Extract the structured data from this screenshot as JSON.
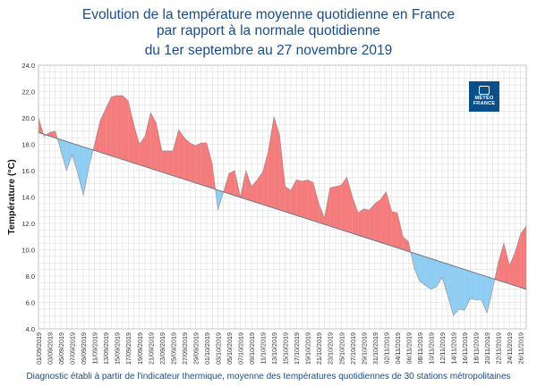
{
  "title_line1": "Evolution de la température moyenne quotidienne en France",
  "title_line2": "par rapport à la normale quotidienne",
  "title_line3": "du 1er septembre au 27 novembre 2019",
  "footer": "Diagnostic établi à partir de l'indicateur thermique, moyenne des températures quotidiennes de 30 stations métropolitaines",
  "logo": {
    "line1": "MÉTÉO",
    "line2": "FRANCE"
  },
  "colors": {
    "above": "#f47c7c",
    "below": "#8fcdf2",
    "line": "#6e7a8a",
    "grid": "#d9d9d9"
  },
  "chart_data": {
    "type": "area",
    "ylabel": "Température (°C)",
    "xlabel": "",
    "ylim": [
      4.0,
      24.0
    ],
    "yticks": [
      "4.0",
      "6.0",
      "8.0",
      "10.0",
      "12.0",
      "14.0",
      "16.0",
      "18.0",
      "20.0",
      "22.0",
      "24.0"
    ],
    "xtick_labels": [
      "01/09/2019",
      "03/09/2019",
      "05/09/2019",
      "07/09/2019",
      "09/09/2019",
      "11/09/2019",
      "13/09/2019",
      "15/09/2019",
      "17/09/2019",
      "19/09/2019",
      "21/09/2019",
      "23/09/2019",
      "25/09/2019",
      "27/09/2019",
      "29/09/2019",
      "01/10/2019",
      "03/10/2019",
      "05/10/2019",
      "07/10/2019",
      "09/10/2019",
      "11/10/2019",
      "13/10/2019",
      "15/10/2019",
      "17/10/2019",
      "19/10/2019",
      "21/10/2019",
      "23/10/2019",
      "25/10/2019",
      "27/10/2019",
      "29/10/2019",
      "31/10/2019",
      "02/11/2019",
      "04/11/2019",
      "06/11/2019",
      "08/11/2019",
      "10/11/2019",
      "12/11/2019",
      "14/11/2019",
      "16/11/2019",
      "18/11/2019",
      "20/11/2019",
      "22/11/2019",
      "24/11/2019",
      "26/11/2019"
    ],
    "series": [
      {
        "name": "Température moyenne quotidienne",
        "values": [
          20.0,
          18.6,
          18.9,
          19.0,
          17.5,
          16.0,
          17.2,
          15.8,
          14.1,
          16.3,
          18.0,
          19.8,
          20.7,
          21.6,
          21.7,
          21.7,
          21.3,
          19.5,
          18.0,
          18.6,
          20.4,
          19.6,
          17.5,
          17.5,
          17.5,
          19.1,
          18.5,
          18.1,
          17.9,
          18.1,
          18.1,
          16.5,
          13.0,
          14.4,
          15.8,
          16.0,
          14.0,
          16.0,
          14.8,
          15.3,
          15.9,
          17.5,
          20.1,
          18.7,
          14.8,
          14.5,
          15.3,
          15.2,
          15.3,
          15.1,
          13.5,
          12.4,
          14.7,
          14.8,
          14.9,
          15.5,
          14.0,
          12.8,
          13.1,
          13.0,
          13.5,
          13.8,
          14.4,
          12.9,
          12.8,
          11.0,
          10.6,
          8.6,
          7.6,
          7.3,
          7.0,
          7.2,
          7.9,
          6.5,
          5.0,
          5.5,
          5.4,
          6.3,
          6.2,
          6.2,
          5.2,
          7.0,
          9.0,
          10.5,
          8.8,
          9.8,
          11.2,
          11.8
        ]
      },
      {
        "name": "Normale quotidienne",
        "start": 18.9,
        "end": 7.0
      }
    ]
  }
}
